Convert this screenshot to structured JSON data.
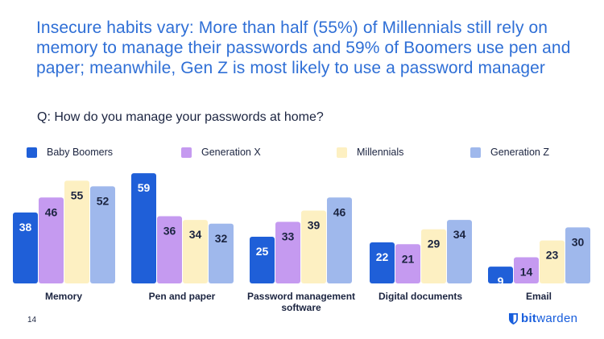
{
  "title": "Insecure habits vary: More than half (55%) of Millennials still rely on memory to manage their passwords and 59% of Boomers use pen and paper; meanwhile, Gen Z is most likely to use a password manager",
  "question": "Q: How do you manage your passwords at home?",
  "page_number": "14",
  "logo": {
    "bold": "bit",
    "regular": "warden"
  },
  "colors": {
    "title": "#2f6fd6",
    "boomers": "#1f5fd8",
    "genx": "#c59af0",
    "millennials": "#fdf0c2",
    "genz": "#9fb8ec",
    "label_dark": "#1b2440",
    "label_light": "#ffffff"
  },
  "chart_data": {
    "type": "bar",
    "categories": [
      "Memory",
      "Pen and paper",
      "Password management software",
      "Digital documents",
      "Email"
    ],
    "category_lines": [
      [
        "Memory"
      ],
      [
        "Pen and paper"
      ],
      [
        "Password management",
        "software"
      ],
      [
        "Digital documents"
      ],
      [
        "Email"
      ]
    ],
    "series": [
      {
        "name": "Baby Boomers",
        "values": [
          38,
          59,
          25,
          22,
          9
        ],
        "color": "#1f5fd8",
        "label_color": "#ffffff"
      },
      {
        "name": "Generation X",
        "values": [
          46,
          36,
          33,
          21,
          14
        ],
        "color": "#c59af0",
        "label_color": "#1b2440"
      },
      {
        "name": "Millennials",
        "values": [
          55,
          34,
          39,
          29,
          23
        ],
        "color": "#fdf0c2",
        "label_color": "#1b2440"
      },
      {
        "name": "Generation Z",
        "values": [
          52,
          32,
          46,
          34,
          30
        ],
        "color": "#9fb8ec",
        "label_color": "#1b2440"
      }
    ],
    "unit": "%",
    "ylim": [
      0,
      62
    ],
    "grid": false,
    "legend_position": "top"
  }
}
